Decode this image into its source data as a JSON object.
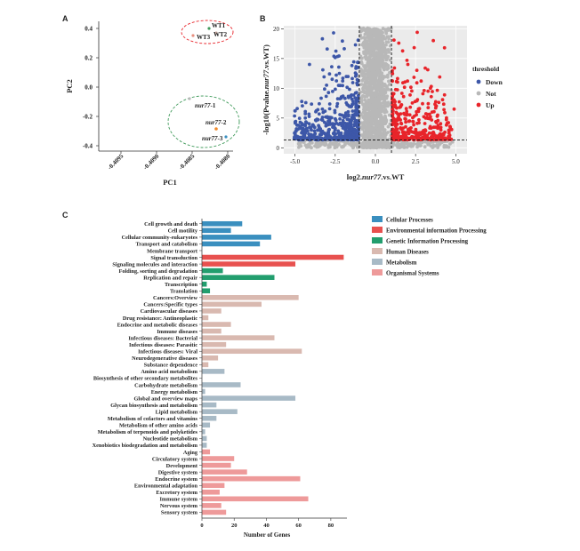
{
  "colors": {
    "cellular": "#3a8fbf",
    "environmental": "#e8514f",
    "genetic": "#229e6e",
    "human": "#d9b9b0",
    "metabolism": "#a8bac6",
    "organismal": "#ee9a9a",
    "down": "#3d57a8",
    "not": "#b8b8b8",
    "up": "#e8242a",
    "wt_point": "#3f9a5a",
    "wt_ellipse": "#e8242a",
    "nur_ellipse": "#3f9a5a"
  },
  "panel_a": {
    "label": "A",
    "xlabel": "PC1",
    "ylabel": "PC2",
    "xticks": [
      "-0.4095",
      "-0.4090",
      "-0.4085",
      "-0.4080"
    ],
    "yticks": [
      "0.4",
      "0.2",
      "0.0",
      "-0.2",
      "-0.4"
    ],
    "points": [
      {
        "name": "WT1",
        "color_key": "wt_point",
        "pc1": -0.4082,
        "pc2": 0.395
      },
      {
        "name": "WT2",
        "color_key": "human",
        "pc1": -0.40806,
        "pc2": 0.36
      },
      {
        "name": "WT3",
        "color_key": "human",
        "pc1": -0.40838,
        "pc2": 0.345
      },
      {
        "name": "nur77-1",
        "color_key": "not",
        "pc1": -0.4086,
        "pc2": -0.2
      },
      {
        "name": "nur77-2",
        "color_key": "orange",
        "pc1": -0.40822,
        "pc2": -0.43
      },
      {
        "name": "nur77-3",
        "color_key": "cellular",
        "pc1": -0.4079,
        "pc2": -0.5
      }
    ],
    "point_labels": {
      "wt1": "WT1",
      "wt2": "WT2",
      "wt3": "WT3",
      "nur1_gene": "nur77",
      "nur1_suffix": "-1",
      "nur2_gene": "nur77",
      "nur2_suffix": "-2",
      "nur3_gene": "nur77",
      "nur3_suffix": "-3"
    }
  },
  "panel_b": {
    "label": "B",
    "ylabel_prefix": "-log10(Pvalue.",
    "ylabel_gene": "nur77",
    "ylabel_suffix": ".vs.WT)",
    "xlabel_prefix": "log2.",
    "xlabel_gene": "nur77",
    "xlabel_suffix": ".vs.WT",
    "xticks": [
      "-5.0",
      "-2.5",
      "0.0",
      "2.5",
      "5.0"
    ],
    "yticks": [
      "0",
      "5",
      "10",
      "15",
      "20"
    ],
    "xlim": [
      -5.7,
      5.7
    ],
    "ylim": [
      -1,
      20.5
    ],
    "fc_threshold": [
      -1,
      1
    ],
    "p_threshold": 1.3,
    "legend_title": "threshold",
    "legend": [
      {
        "label": "Down",
        "color_key": "down"
      },
      {
        "label": "Not",
        "color_key": "not"
      },
      {
        "label": "Up",
        "color_key": "up"
      }
    ]
  },
  "panel_c": {
    "label": "C",
    "xlabel": "Number of Genes",
    "xticks": [
      "0",
      "20",
      "40",
      "60",
      "80"
    ],
    "xmax": 90,
    "legend": [
      {
        "label": "Cellular Processes",
        "color_key": "cellular"
      },
      {
        "label": "Environmental information Processing",
        "color_key": "environmental"
      },
      {
        "label": "Genetic Information Processing",
        "color_key": "genetic"
      },
      {
        "label": "Human Diseases",
        "color_key": "human"
      },
      {
        "label": "Metabolism",
        "color_key": "metabolism"
      },
      {
        "label": "Organismal Systems",
        "color_key": "organismal"
      }
    ]
  },
  "chart_data": [
    {
      "type": "scatter",
      "title": "",
      "xlabel": "PC1",
      "ylabel": "PC2",
      "series": [
        {
          "name": "WT1",
          "x": [
            -0.4082
          ],
          "y": [
            0.395
          ]
        },
        {
          "name": "WT2",
          "x": [
            -0.40806
          ],
          "y": [
            0.36
          ]
        },
        {
          "name": "WT3",
          "x": [
            -0.40838
          ],
          "y": [
            0.345
          ]
        },
        {
          "name": "nur77-1",
          "x": [
            -0.4086
          ],
          "y": [
            -0.2
          ]
        },
        {
          "name": "nur77-2",
          "x": [
            -0.40822
          ],
          "y": [
            -0.43
          ]
        },
        {
          "name": "nur77-3",
          "x": [
            -0.4079
          ],
          "y": [
            -0.5
          ]
        }
      ]
    },
    {
      "type": "scatter",
      "title": "",
      "xlabel": "log2.nur77.vs.WT",
      "ylabel": "-log10(Pvalue.nur77.vs.WT)",
      "xlim": [
        -5.7,
        5.7
      ],
      "ylim": [
        -1,
        20.5
      ],
      "series": [
        {
          "name": "Down",
          "x": [
            -5.0,
            -4.0,
            -3.2,
            -2.5,
            -2.0,
            -1.5,
            -1.2
          ],
          "y": [
            6,
            14,
            18.5,
            19,
            10,
            6,
            3
          ]
        },
        {
          "name": "Not",
          "x": [
            -1.0,
            -0.5,
            0.0,
            0.5,
            1.0
          ],
          "y": [
            20,
            19,
            20,
            17,
            9
          ]
        },
        {
          "name": "Up",
          "x": [
            1.2,
            1.6,
            2.2,
            3.0,
            4.2,
            4.8
          ],
          "y": [
            12,
            19,
            15,
            13,
            16.8,
            6
          ]
        }
      ]
    },
    {
      "type": "bar",
      "orientation": "horizontal",
      "title": "",
      "xlabel": "Number of Genes",
      "ylabel": "",
      "xlim": [
        0,
        90
      ],
      "categories": [
        {
          "name": "Cell growth and death",
          "value": 25,
          "group": "cellular"
        },
        {
          "name": "Cell motility",
          "value": 18,
          "group": "cellular"
        },
        {
          "name": "Cellular community-eukaryotes",
          "value": 43,
          "group": "cellular"
        },
        {
          "name": "Transport and catabolism",
          "value": 36,
          "group": "cellular"
        },
        {
          "name": "Membrane transport",
          "value": 0,
          "group": "environmental"
        },
        {
          "name": "Signal transduction",
          "value": 88,
          "group": "environmental"
        },
        {
          "name": "Signaling molecules and interaction",
          "value": 58,
          "group": "environmental"
        },
        {
          "name": "Folding, sorting and degradation",
          "value": 13,
          "group": "genetic"
        },
        {
          "name": "Replication and repair",
          "value": 45,
          "group": "genetic"
        },
        {
          "name": "Transcription",
          "value": 3,
          "group": "genetic"
        },
        {
          "name": "Translation",
          "value": 5,
          "group": "genetic"
        },
        {
          "name": "Cancers:Overview",
          "value": 60,
          "group": "human"
        },
        {
          "name": "Cancers:Specific types",
          "value": 37,
          "group": "human"
        },
        {
          "name": "Cardiovascular diseases",
          "value": 12,
          "group": "human"
        },
        {
          "name": "Drug resistance: Antineoplastic",
          "value": 4,
          "group": "human"
        },
        {
          "name": "Endocrine and metabolic diseases",
          "value": 18,
          "group": "human"
        },
        {
          "name": "Immune diseases",
          "value": 12,
          "group": "human"
        },
        {
          "name": "Infectious diseases: Bacterial",
          "value": 45,
          "group": "human"
        },
        {
          "name": "Infectious diseases: Parasitic",
          "value": 15,
          "group": "human"
        },
        {
          "name": "Infectious diseases: Viral",
          "value": 62,
          "group": "human"
        },
        {
          "name": "Neurodegenerative diseases",
          "value": 10,
          "group": "human"
        },
        {
          "name": "Substance dependence",
          "value": 4,
          "group": "human"
        },
        {
          "name": "Amino acid metabolism",
          "value": 14,
          "group": "metabolism"
        },
        {
          "name": "Biosynthesis of other secondary metabolites",
          "value": 0,
          "group": "metabolism"
        },
        {
          "name": "Carbohydrate metabolism",
          "value": 24,
          "group": "metabolism"
        },
        {
          "name": "Energy metabolism",
          "value": 2,
          "group": "metabolism"
        },
        {
          "name": "Global and overview maps",
          "value": 58,
          "group": "metabolism"
        },
        {
          "name": "Glycan biosynthesis and metabolism",
          "value": 9,
          "group": "metabolism"
        },
        {
          "name": "Lipid metabolism",
          "value": 22,
          "group": "metabolism"
        },
        {
          "name": "Metabolism of cofactors and vitamins",
          "value": 9,
          "group": "metabolism"
        },
        {
          "name": "Metabolism of other amino acids",
          "value": 5,
          "group": "metabolism"
        },
        {
          "name": "Metabolism of terpenoids and polyketides",
          "value": 2,
          "group": "metabolism"
        },
        {
          "name": "Nucleotide metabolism",
          "value": 3,
          "group": "metabolism"
        },
        {
          "name": "Xenobiotics biodegradation and metabolism",
          "value": 3,
          "group": "metabolism"
        },
        {
          "name": "Aging",
          "value": 5,
          "group": "organismal"
        },
        {
          "name": "Circulatory system",
          "value": 20,
          "group": "organismal"
        },
        {
          "name": "Development",
          "value": 18,
          "group": "organismal"
        },
        {
          "name": "Digestive system",
          "value": 28,
          "group": "organismal"
        },
        {
          "name": "Endocrine system",
          "value": 61,
          "group": "organismal"
        },
        {
          "name": "Environmental adaptation",
          "value": 14,
          "group": "organismal"
        },
        {
          "name": "Excretory system",
          "value": 11,
          "group": "organismal"
        },
        {
          "name": "Immune system",
          "value": 66,
          "group": "organismal"
        },
        {
          "name": "Nervous system",
          "value": 12,
          "group": "organismal"
        },
        {
          "name": "Sensory system",
          "value": 15,
          "group": "organismal"
        }
      ]
    }
  ]
}
